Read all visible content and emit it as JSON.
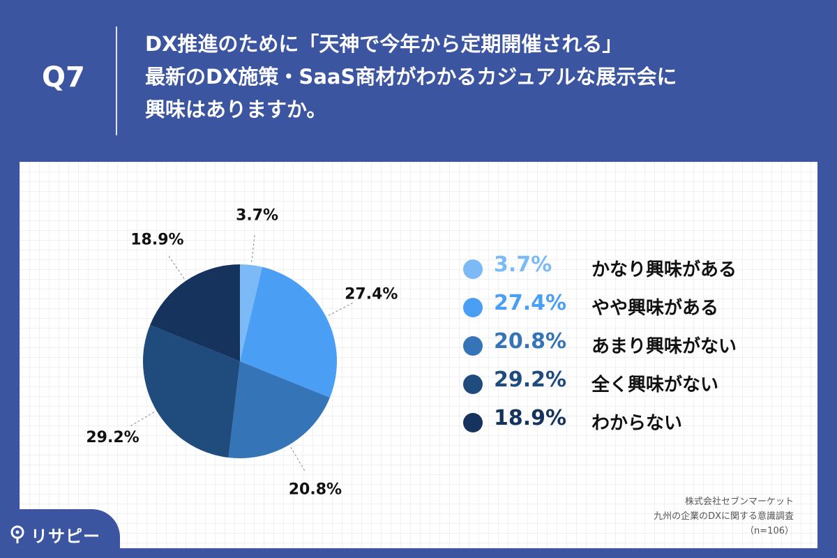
{
  "question": {
    "number": "Q7",
    "lines": [
      "DX推進のために「天神で今年から定期開催される」",
      "最新のDX施策・SaaS商材がわかるカジュアルな展示会に",
      "興味はありますか。"
    ]
  },
  "chart_data": {
    "type": "pie",
    "slices": [
      {
        "label": "かなり興味がある",
        "value": 3.7,
        "display": "3.7%",
        "color": "#7bbaf7"
      },
      {
        "label": "やや興味がある",
        "value": 27.4,
        "display": "27.4%",
        "color": "#4a9ff5"
      },
      {
        "label": "あまり興味がない",
        "value": 20.8,
        "display": "20.8%",
        "color": "#3574b6"
      },
      {
        "label": "全く興味がない",
        "value": 29.2,
        "display": "29.2%",
        "color": "#1f4b7d"
      },
      {
        "label": "わからない",
        "value": 18.9,
        "display": "18.9%",
        "color": "#16335e"
      }
    ],
    "legend_position": "right"
  },
  "source": {
    "company": "株式会社セブンマーケット",
    "survey": "九州の企業のDXに関する意識調査",
    "sample": "（n=106）"
  },
  "logo": {
    "text": "リサピー",
    "icon": "magnifier-icon"
  }
}
